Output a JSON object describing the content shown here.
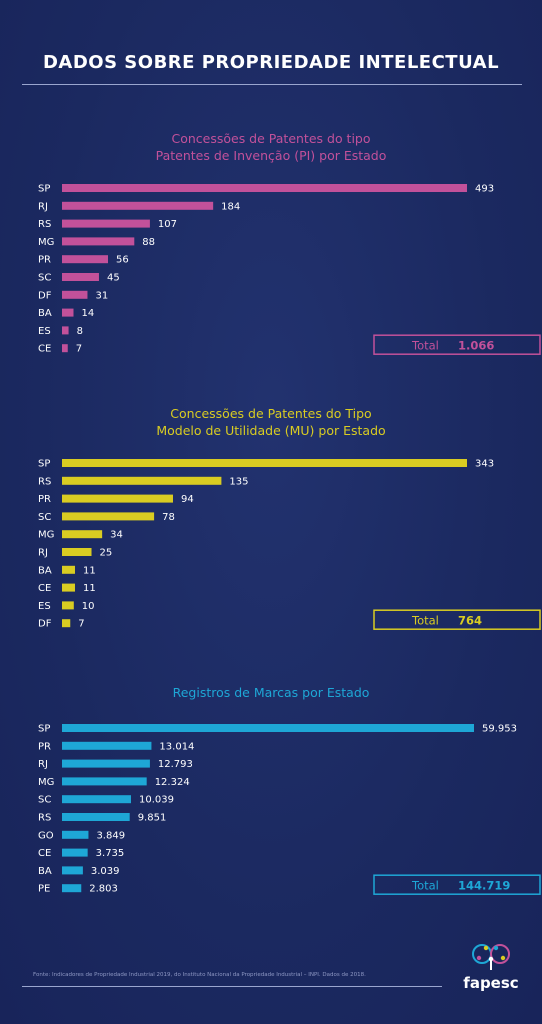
{
  "header": {
    "title": "DADOS SOBRE PROPRIEDADE INTELECTUAL"
  },
  "colors": {
    "pi": "#c2519a",
    "mu": "#d9cc22",
    "marcas": "#1ea7d6"
  },
  "chart_data": [
    {
      "type": "bar",
      "orientation": "horizontal",
      "title_lines": [
        "Concessões de Patentes do tipo",
        "Patentes de Invenção (PI) por Estado"
      ],
      "categories": [
        "SP",
        "RJ",
        "RS",
        "MG",
        "PR",
        "SC",
        "DF",
        "BA",
        "ES",
        "CE"
      ],
      "values": [
        493,
        184,
        107,
        88,
        56,
        45,
        31,
        14,
        8,
        7
      ],
      "value_labels": [
        "493",
        "184",
        "107",
        "88",
        "56",
        "45",
        "31",
        "14",
        "8",
        "7"
      ],
      "total_label": "Total",
      "total_value": "1.066",
      "color": "#c2519a"
    },
    {
      "type": "bar",
      "orientation": "horizontal",
      "title_lines": [
        "Concessões de Patentes do Tipo",
        "Modelo de Utilidade (MU) por Estado"
      ],
      "categories": [
        "SP",
        "RS",
        "PR",
        "SC",
        "MG",
        "RJ",
        "BA",
        "CE",
        "ES",
        "DF"
      ],
      "values": [
        343,
        135,
        94,
        78,
        34,
        25,
        11,
        11,
        10,
        7
      ],
      "value_labels": [
        "343",
        "135",
        "94",
        "78",
        "34",
        "25",
        "11",
        "11",
        "10",
        "7"
      ],
      "total_label": "Total",
      "total_value": "764",
      "color": "#d9cc22"
    },
    {
      "type": "bar",
      "orientation": "horizontal",
      "title_lines": [
        "Registros de Marcas por Estado"
      ],
      "categories": [
        "SP",
        "PR",
        "RJ",
        "MG",
        "SC",
        "RS",
        "GO",
        "CE",
        "BA",
        "PE"
      ],
      "values": [
        59953,
        13014,
        12793,
        12324,
        10039,
        9851,
        3849,
        3735,
        3039,
        2803
      ],
      "value_labels": [
        "59.953",
        "13.014",
        "12.793",
        "12.324",
        "10.039",
        "9.851",
        "3.849",
        "3.735",
        "3.039",
        "2.803"
      ],
      "total_label": "Total",
      "total_value": "144.719",
      "color": "#1ea7d6"
    }
  ],
  "footer": {
    "source": "Fonte: Indicadores de Propriedade Industrial 2019, do Instituto Nacional da Propriedade Industrial – INPI. Dados de 2018.",
    "logo_text": "fapesc"
  }
}
